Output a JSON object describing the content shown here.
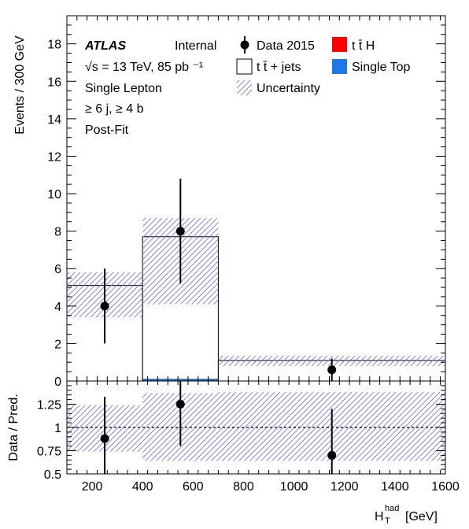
{
  "chart_data": [
    {
      "type": "bar",
      "panel": "main",
      "ylabel": "Events / 300 GeV",
      "xlim": [
        100,
        1600
      ],
      "ylim": [
        0,
        19.5
      ],
      "yticks": [
        0,
        2,
        4,
        6,
        8,
        10,
        12,
        14,
        16,
        18
      ],
      "bins": [
        [
          100,
          400
        ],
        [
          400,
          700
        ],
        [
          700,
          1600
        ]
      ],
      "series": [
        {
          "name": "t t̄ + jets",
          "values": [
            5.1,
            7.7,
            1.1
          ],
          "color": "#ffffff"
        },
        {
          "name": "Single Top",
          "values": [
            0.0,
            0.1,
            0.0
          ],
          "color": "#1f78e6"
        },
        {
          "name": "t t̄ H",
          "values": [
            0.0,
            0.0,
            0.0
          ],
          "color": "#ff0000"
        }
      ],
      "uncertainty": {
        "name": "Uncertainty",
        "low": [
          3.4,
          4.1,
          0.8
        ],
        "high": [
          5.8,
          8.7,
          1.35
        ],
        "color": "#6f6fd6"
      },
      "data": {
        "name": "Data 2015",
        "x": [
          250,
          550,
          1150
        ],
        "y": [
          4,
          8,
          0.6
        ],
        "err_low": [
          2.0,
          2.8,
          0.6
        ],
        "err_high": [
          2.0,
          2.8,
          0.6
        ]
      },
      "annotations": {
        "experiment": "ATLAS",
        "status": "Internal",
        "energy": "√s = 13 TeV, 85 pb ⁻¹",
        "channel": "Single Lepton",
        "region": "≥ 6 j, ≥ 4 b",
        "fit": "Post-Fit"
      },
      "legend_position": "top-right"
    },
    {
      "type": "scatter",
      "panel": "ratio",
      "xlabel": "H_T^had [GeV]",
      "xlabel_main": "H",
      "xlabel_sub": "T",
      "xlabel_sup": "had",
      "xlabel_unit": "[GeV]",
      "ylabel": "Data / Pred.",
      "xlim": [
        100,
        1600
      ],
      "ylim": [
        0.5,
        1.5
      ],
      "yticks": [
        0.5,
        0.75,
        1,
        1.25
      ],
      "ytick_labels": [
        "0.5",
        "0.75",
        "1",
        "1.25"
      ],
      "xticks": [
        200,
        400,
        600,
        800,
        1000,
        1200,
        1400,
        1600
      ],
      "reference_line": 1,
      "uncertainty": {
        "low": [
          0.74,
          0.64,
          0.64
        ],
        "high": [
          1.24,
          1.37,
          1.38
        ]
      },
      "x": [
        250,
        550,
        1150
      ],
      "y": [
        0.88,
        1.25,
        0.7
      ],
      "err_low": [
        0.5,
        0.45,
        0.7
      ],
      "err_high": [
        0.45,
        0.3,
        0.5
      ]
    }
  ]
}
